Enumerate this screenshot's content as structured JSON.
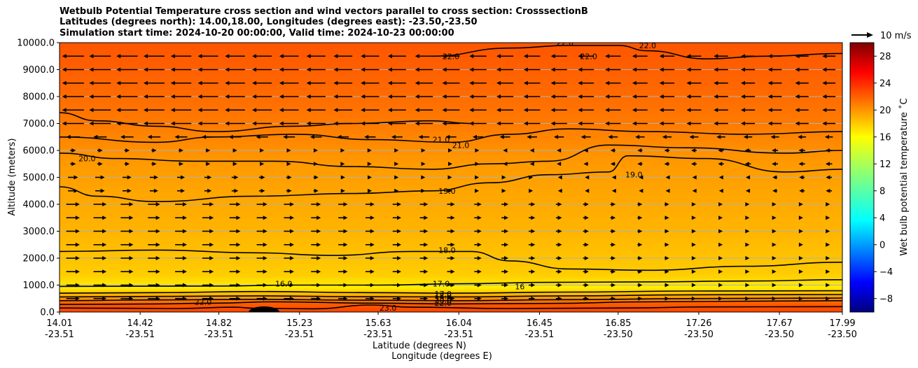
{
  "chart_data": {
    "type": "contour",
    "title": [
      "Wetbulb Potential Temperature cross section and wind vectors parallel to cross section: CrosssectionB",
      "Latitudes (degrees north): 14.00,18.00, Longitudes (degrees east): -23.50,-23.50",
      "Simulation start time: 2024-10-20 00:00:00, Valid time: 2024-10-23 00:00:00"
    ],
    "xlabel": "Latitude (degrees N)",
    "xlabel2": "Longitude (degrees E)",
    "ylabel": "Altitude (meters)",
    "xlim": [
      14.01,
      17.99
    ],
    "ylim": [
      0,
      10000
    ],
    "x_ticks": [
      {
        "lat": "14.01",
        "lon": "-23.51",
        "x": 14.01
      },
      {
        "lat": "14.42",
        "lon": "-23.51",
        "x": 14.42
      },
      {
        "lat": "14.82",
        "lon": "-23.51",
        "x": 14.82
      },
      {
        "lat": "15.23",
        "lon": "-23.51",
        "x": 15.23
      },
      {
        "lat": "15.63",
        "lon": "-23.51",
        "x": 15.63
      },
      {
        "lat": "16.04",
        "lon": "-23.51",
        "x": 16.04
      },
      {
        "lat": "16.45",
        "lon": "-23.51",
        "x": 16.45
      },
      {
        "lat": "16.85",
        "lon": "-23.50",
        "x": 16.85
      },
      {
        "lat": "17.26",
        "lon": "-23.50",
        "x": 17.26
      },
      {
        "lat": "17.67",
        "lon": "-23.50",
        "x": 17.67
      },
      {
        "lat": "17.99",
        "lon": "-23.50",
        "x": 17.99
      }
    ],
    "y_ticks": [
      "0.0",
      "1000.0",
      "2000.0",
      "3000.0",
      "4000.0",
      "5000.0",
      "6000.0",
      "7000.0",
      "8000.0",
      "9000.0",
      "10000.0"
    ],
    "y_tick_values": [
      0,
      1000,
      2000,
      3000,
      4000,
      5000,
      6000,
      7000,
      8000,
      9000,
      10000
    ],
    "grid": "horizontal",
    "colorbar": {
      "label": "Wet bulb potential temperature $^\\circ$C",
      "label_text": "Wet bulb potential temperature ˚C",
      "range": [
        -10,
        30
      ],
      "ticks": [
        "−8",
        "−4",
        "0",
        "4",
        "8",
        "12",
        "16",
        "20",
        "24",
        "28"
      ],
      "tick_values": [
        -8,
        -4,
        0,
        4,
        8,
        12,
        16,
        20,
        24,
        28
      ],
      "colormap": "jet"
    },
    "quiver_key": "10 m/s",
    "contours": [
      {
        "level": 23.0,
        "label": "23.0",
        "points": [
          [
            14.01,
            150
          ],
          [
            14.6,
            130
          ],
          [
            14.9,
            180
          ],
          [
            15.0,
            140
          ],
          [
            15.3,
            120
          ],
          [
            15.6,
            260
          ],
          [
            15.8,
            180
          ],
          [
            16.3,
            130
          ],
          [
            16.9,
            150
          ],
          [
            17.3,
            190
          ],
          [
            17.99,
            200
          ]
        ]
      },
      {
        "level": 22.0,
        "label": "22.0",
        "points": [
          [
            14.01,
            280
          ],
          [
            14.5,
            300
          ],
          [
            14.8,
            330
          ],
          [
            15.1,
            380
          ],
          [
            15.6,
            330
          ],
          [
            16.0,
            300
          ],
          [
            16.5,
            320
          ],
          [
            17.0,
            380
          ],
          [
            17.5,
            400
          ],
          [
            17.99,
            420
          ]
        ]
      },
      {
        "level": 21.0,
        "label": "",
        "points": [
          [
            14.01,
            420
          ],
          [
            14.5,
            450
          ],
          [
            15.0,
            470
          ],
          [
            15.6,
            440
          ],
          [
            16.0,
            420
          ],
          [
            16.6,
            460
          ],
          [
            17.2,
            500
          ],
          [
            17.99,
            520
          ]
        ]
      },
      {
        "level": 20.0,
        "label": "",
        "points": [
          [
            14.01,
            560
          ],
          [
            14.5,
            580
          ],
          [
            15.0,
            600
          ],
          [
            15.6,
            570
          ],
          [
            16.0,
            560
          ],
          [
            16.6,
            600
          ],
          [
            17.2,
            640
          ],
          [
            17.99,
            650
          ]
        ]
      },
      {
        "level": 19.0,
        "label": "",
        "points": [
          [
            14.01,
            700
          ],
          [
            14.5,
            720
          ],
          [
            15.0,
            760
          ],
          [
            15.6,
            720
          ],
          [
            16.0,
            700
          ],
          [
            16.6,
            740
          ],
          [
            17.2,
            780
          ],
          [
            17.99,
            790
          ]
        ]
      },
      {
        "level": 17.0,
        "label": "17.0",
        "points": [
          [
            14.01,
            950
          ],
          [
            14.8,
            960
          ],
          [
            15.2,
            1000
          ],
          [
            15.63,
            1000
          ],
          [
            16.04,
            1050
          ],
          [
            16.5,
            1100
          ],
          [
            17.0,
            1120
          ],
          [
            17.5,
            1150
          ],
          [
            17.99,
            1200
          ]
        ]
      },
      {
        "level": 18.0,
        "label": "18.0",
        "points": [
          [
            14.01,
            2250
          ],
          [
            14.5,
            2300
          ],
          [
            15.0,
            2200
          ],
          [
            15.4,
            2100
          ],
          [
            15.8,
            2250
          ],
          [
            16.1,
            2250
          ],
          [
            16.3,
            1900
          ],
          [
            16.6,
            1600
          ],
          [
            17.0,
            1550
          ],
          [
            17.5,
            1700
          ],
          [
            17.99,
            1850
          ]
        ]
      },
      {
        "level": 19.0,
        "label": "19.0",
        "points": [
          [
            14.01,
            4650
          ],
          [
            14.2,
            4300
          ],
          [
            14.5,
            4100
          ],
          [
            15.0,
            4300
          ],
          [
            15.5,
            4400
          ],
          [
            15.9,
            4500
          ],
          [
            16.2,
            4800
          ],
          [
            16.5,
            5100
          ],
          [
            16.8,
            5200
          ],
          [
            16.9,
            5800
          ],
          [
            17.3,
            5700
          ],
          [
            17.7,
            5200
          ],
          [
            17.99,
            5300
          ]
        ]
      },
      {
        "level": 20.0,
        "label": "20.0",
        "points": [
          [
            14.01,
            5900
          ],
          [
            14.3,
            5700
          ],
          [
            14.7,
            5600
          ],
          [
            15.1,
            5600
          ],
          [
            15.5,
            5400
          ],
          [
            15.9,
            5300
          ],
          [
            16.2,
            5500
          ],
          [
            16.5,
            5600
          ],
          [
            16.8,
            6200
          ],
          [
            17.2,
            6100
          ],
          [
            17.7,
            5900
          ],
          [
            17.99,
            6000
          ]
        ]
      },
      {
        "level": 21.0,
        "label": "21.0",
        "points": [
          [
            14.01,
            6500
          ],
          [
            14.5,
            6300
          ],
          [
            14.8,
            6500
          ],
          [
            15.2,
            6600
          ],
          [
            15.6,
            6400
          ],
          [
            16.0,
            6300
          ],
          [
            16.3,
            6600
          ],
          [
            16.6,
            6800
          ],
          [
            17.0,
            6700
          ],
          [
            17.5,
            6600
          ],
          [
            17.99,
            6700
          ]
        ]
      },
      {
        "level": 22.0,
        "label": "22.0",
        "points": [
          [
            14.01,
            7400
          ],
          [
            14.2,
            7100
          ],
          [
            14.5,
            6900
          ],
          [
            14.8,
            6700
          ],
          [
            15.2,
            6900
          ],
          [
            15.5,
            7000
          ],
          [
            15.9,
            7100
          ],
          [
            16.1,
            7000
          ]
        ]
      },
      {
        "level": 22.0,
        "label": "22.0",
        "points": [
          [
            15.9,
            9500
          ],
          [
            16.3,
            9800
          ],
          [
            16.6,
            9900
          ],
          [
            16.85,
            9900
          ],
          [
            17.0,
            9700
          ],
          [
            17.3,
            9400
          ],
          [
            17.6,
            9500
          ],
          [
            17.99,
            9600
          ]
        ]
      }
    ],
    "contour_labels": [
      {
        "text": "22.0",
        "x": 16.0,
        "y": 9500
      },
      {
        "text": "22.0",
        "x": 16.58,
        "y": 10000
      },
      {
        "text": "22.0",
        "x": 16.7,
        "y": 9500
      },
      {
        "text": "22.0",
        "x": 17.0,
        "y": 9900
      },
      {
        "text": "21.0",
        "x": 15.95,
        "y": 6400
      },
      {
        "text": "21.0",
        "x": 16.05,
        "y": 6200
      },
      {
        "text": "20.0",
        "x": 14.15,
        "y": 5700
      },
      {
        "text": "19.0",
        "x": 15.98,
        "y": 4500
      },
      {
        "text": "19.0",
        "x": 16.93,
        "y": 5100
      },
      {
        "text": "18.0",
        "x": 15.98,
        "y": 2300
      },
      {
        "text": "17.0",
        "x": 15.95,
        "y": 1050
      },
      {
        "text": "16.0",
        "x": 15.15,
        "y": 1050
      },
      {
        "text": "16",
        "x": 16.35,
        "y": 950
      },
      {
        "text": "17.0",
        "x": 15.96,
        "y": 680
      },
      {
        "text": "18.0",
        "x": 15.96,
        "y": 600
      },
      {
        "text": "19.0",
        "x": 15.96,
        "y": 520
      },
      {
        "text": "20.0",
        "x": 15.96,
        "y": 440
      },
      {
        "text": "22.0",
        "x": 15.96,
        "y": 340
      },
      {
        "text": "22.0",
        "x": 14.74,
        "y": 380
      },
      {
        "text": "23.0",
        "x": 15.68,
        "y": 150
      }
    ]
  }
}
